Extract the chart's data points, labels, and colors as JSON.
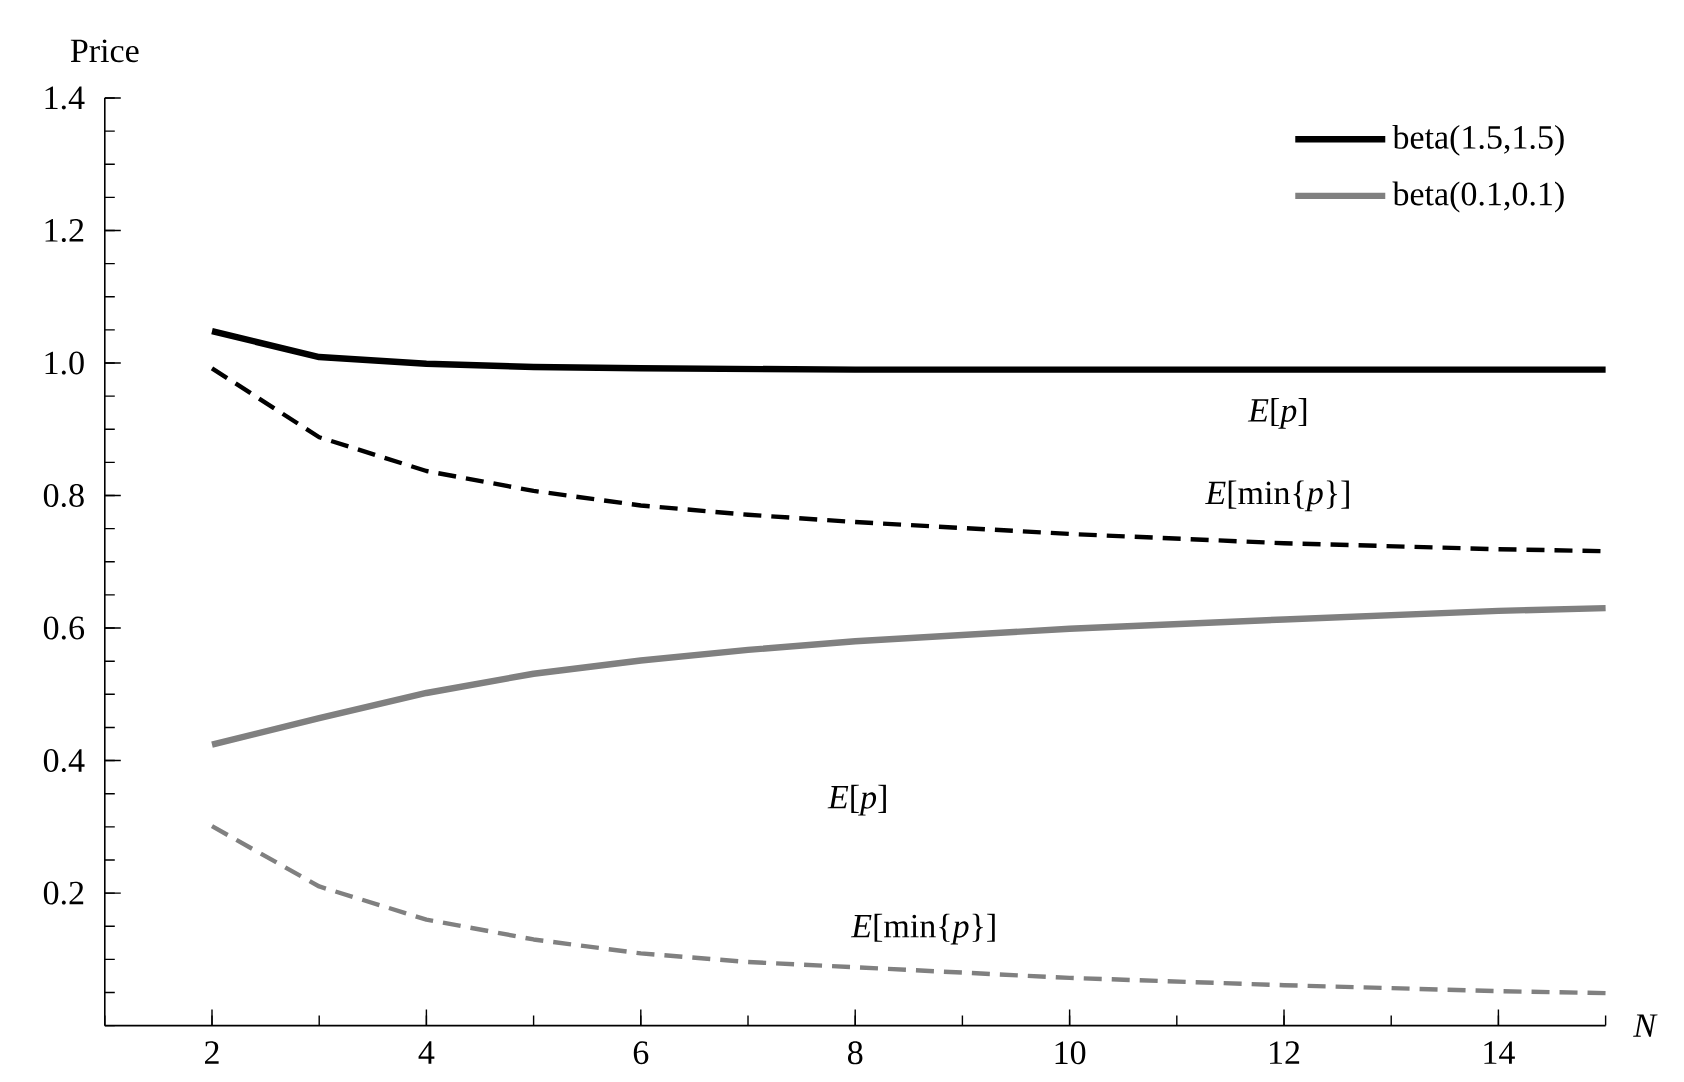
{
  "chart_data": {
    "type": "line",
    "ylabel": "Price",
    "xlabel": "N",
    "xlim": [
      1,
      15
    ],
    "ylim": [
      0,
      1.4
    ],
    "xticks": [
      2,
      4,
      6,
      8,
      10,
      12,
      14
    ],
    "yticks": [
      0.2,
      0.4,
      0.6,
      0.8,
      {
        "value": 1.0,
        "label": "1.0"
      },
      1.2,
      1.4
    ],
    "grid": false,
    "legend": "top right",
    "marker": "none",
    "series": [
      {
        "name": "beta(1.5,1.5)",
        "color": "#000000",
        "line_style": "solid",
        "x": [
          2,
          3,
          4,
          5,
          6,
          7,
          8,
          10,
          12,
          14,
          15
        ],
        "values": [
          1.048,
          1.009,
          0.999,
          0.994,
          0.992,
          0.991,
          0.99,
          0.99,
          0.99,
          0.99,
          0.99
        ]
      },
      {
        "name": "beta(0.1,0.1)",
        "color": "#808080",
        "line_style": "solid",
        "x": [
          2,
          3,
          4,
          5,
          6,
          7,
          8,
          10,
          12,
          14,
          15
        ],
        "values": [
          0.424,
          0.464,
          0.502,
          0.531,
          0.551,
          0.567,
          0.58,
          0.599,
          0.613,
          0.626,
          0.63
        ]
      },
      {
        "color": "#000000",
        "line_style": "dashed",
        "x": [
          2,
          3,
          4,
          5,
          6,
          7,
          8,
          10,
          12,
          14,
          15
        ],
        "values": [
          0.992,
          0.888,
          0.837,
          0.807,
          0.785,
          0.771,
          0.76,
          0.742,
          0.728,
          0.719,
          0.716
        ]
      },
      {
        "color": "#808080",
        "line_style": "dashed",
        "x": [
          2,
          3,
          4,
          5,
          6,
          7,
          8,
          10,
          12,
          14,
          15
        ],
        "values": [
          0.301,
          0.21,
          0.16,
          0.13,
          0.109,
          0.096,
          0.088,
          0.072,
          0.061,
          0.052,
          0.049
        ]
      }
    ],
    "annotations": [
      "*E*[*p*]",
      "*E*[min{*p*}]",
      "*E*[*p*]",
      "*E*[min{*p*}]"
    ]
  }
}
